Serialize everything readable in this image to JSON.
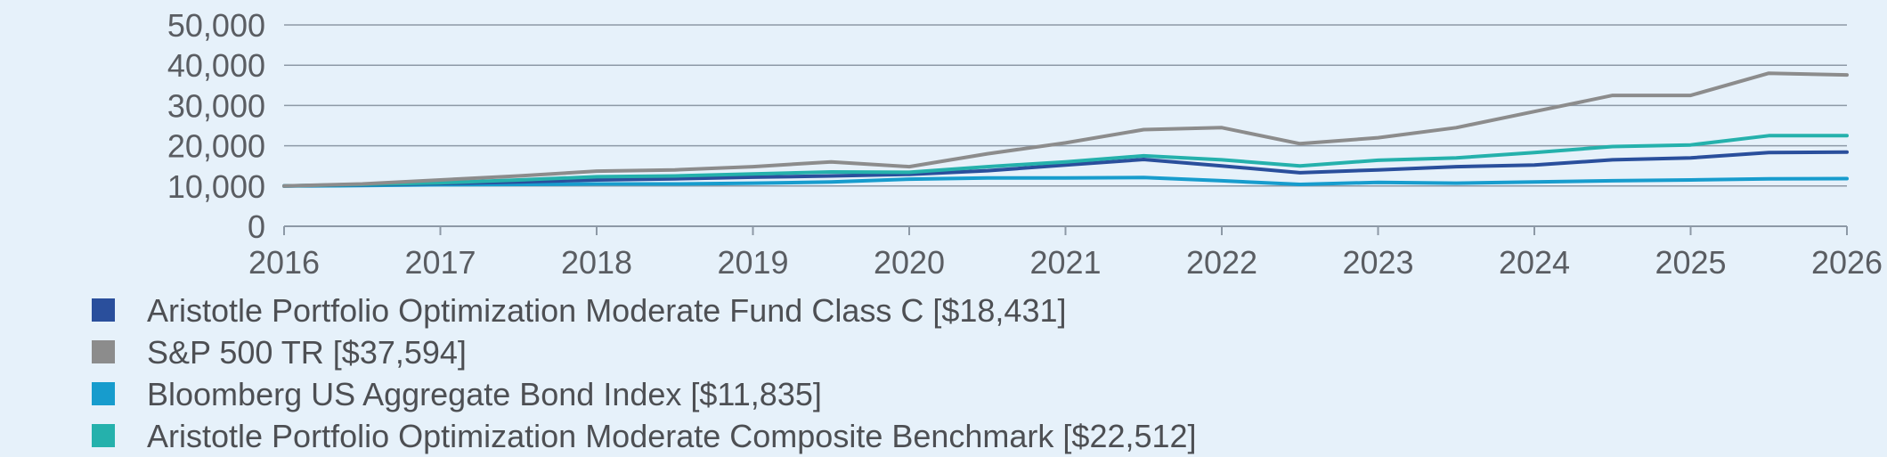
{
  "chart_data": {
    "type": "line",
    "title": "",
    "xlabel": "",
    "ylabel": "",
    "ylim": [
      0,
      50000
    ],
    "xlim": [
      2016,
      2026
    ],
    "y_ticks": [
      0,
      10000,
      20000,
      30000,
      40000,
      50000
    ],
    "y_tick_labels": [
      "0",
      "10,000",
      "20,000",
      "30,000",
      "40,000",
      "50,000"
    ],
    "x_ticks": [
      2016,
      2017,
      2018,
      2019,
      2020,
      2021,
      2022,
      2023,
      2024,
      2025,
      2026
    ],
    "x_tick_labels": [
      "2016",
      "2017",
      "2018",
      "2019",
      "2020",
      "2021",
      "2022",
      "2023",
      "2024",
      "2025",
      "2026"
    ],
    "grid": "horizontal",
    "legend_position": "bottom",
    "series": [
      {
        "name": "Aristotle Portfolio Optimization Moderate Fund Class C [$18,431]",
        "color": "#2a4f9c",
        "x": [
          2016,
          2016.5,
          2017,
          2017.5,
          2018,
          2018.5,
          2019,
          2019.5,
          2020,
          2020.5,
          2021,
          2021.5,
          2022,
          2022.5,
          2023,
          2023.5,
          2024,
          2024.5,
          2025,
          2025.5,
          2026
        ],
        "values": [
          10000,
          10300,
          10600,
          11000,
          11500,
          11800,
          12200,
          12500,
          12900,
          13800,
          15200,
          16600,
          15000,
          13300,
          14000,
          14800,
          15200,
          16500,
          17000,
          18300,
          18431
        ]
      },
      {
        "name": "S&P 500 TR [$37,594]",
        "color": "#8c8c8c",
        "x": [
          2016,
          2016.5,
          2017,
          2017.5,
          2018,
          2018.5,
          2019,
          2019.5,
          2020,
          2020.5,
          2021,
          2021.5,
          2022,
          2022.5,
          2023,
          2023.5,
          2024,
          2024.5,
          2025,
          2025.5,
          2026
        ],
        "values": [
          10000,
          10500,
          11500,
          12500,
          13700,
          14000,
          14800,
          16000,
          14800,
          18000,
          20700,
          24000,
          24500,
          20500,
          22000,
          24500,
          28500,
          32500,
          32500,
          38000,
          37594
        ]
      },
      {
        "name": "Bloomberg US Aggregate Bond Index [$11,835]",
        "color": "#179ccd",
        "x": [
          2016,
          2016.5,
          2017,
          2017.5,
          2018,
          2018.5,
          2019,
          2019.5,
          2020,
          2020.5,
          2021,
          2021.5,
          2022,
          2022.5,
          2023,
          2023.5,
          2024,
          2024.5,
          2025,
          2025.5,
          2026
        ],
        "values": [
          10000,
          10100,
          10300,
          10400,
          10500,
          10500,
          10700,
          11000,
          11700,
          12000,
          12000,
          12100,
          11300,
          10400,
          10900,
          10700,
          11000,
          11300,
          11500,
          11800,
          11835
        ]
      },
      {
        "name": "Aristotle Portfolio Optimization Moderate Composite Benchmark [$22,512]",
        "color": "#25b1ac",
        "x": [
          2016,
          2016.5,
          2017,
          2017.5,
          2018,
          2018.5,
          2019,
          2019.5,
          2020,
          2020.5,
          2021,
          2021.5,
          2022,
          2022.5,
          2023,
          2023.5,
          2024,
          2024.5,
          2025,
          2025.5,
          2026
        ],
        "values": [
          10000,
          10400,
          10800,
          11500,
          12300,
          12500,
          13000,
          13500,
          13400,
          14800,
          16000,
          17500,
          16500,
          15000,
          16400,
          17000,
          18300,
          19800,
          20200,
          22500,
          22512
        ]
      }
    ]
  }
}
